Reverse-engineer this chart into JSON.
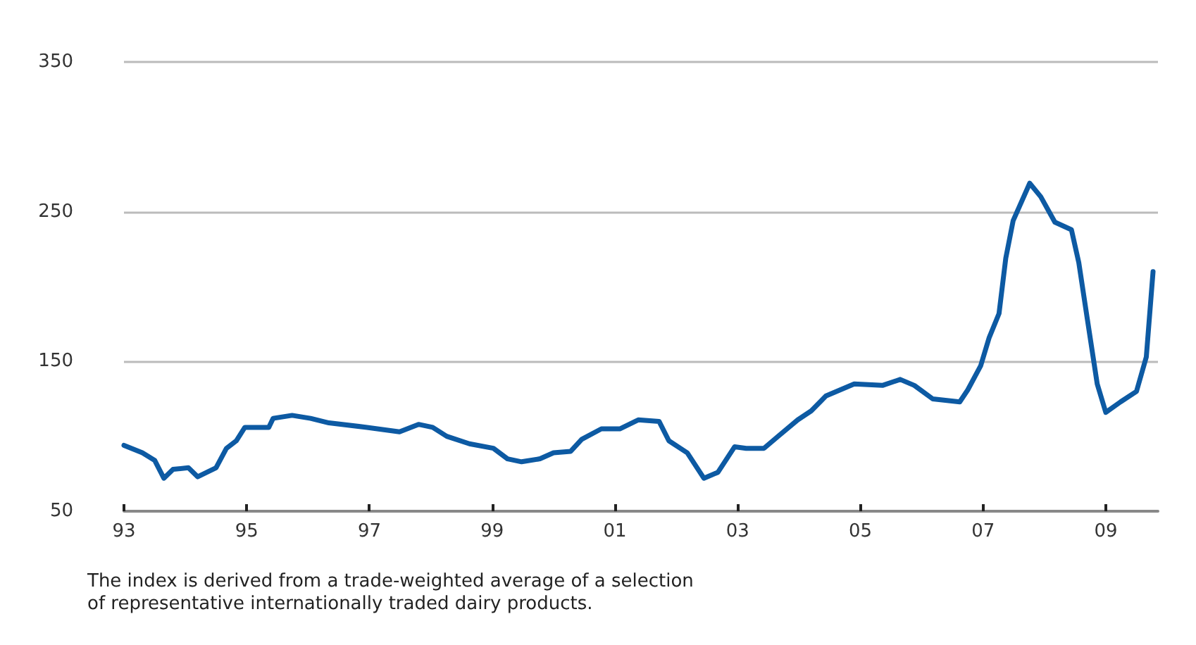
{
  "chart_data": {
    "type": "line",
    "x": [
      1993.0,
      1993.3,
      1993.5,
      1993.65,
      1993.8,
      1994.05,
      1994.2,
      1994.5,
      1994.67,
      1994.83,
      1994.97,
      1995.36,
      1995.43,
      1995.74,
      1996.04,
      1996.34,
      1996.96,
      1997.49,
      1997.8,
      1998.03,
      1998.26,
      1998.63,
      1999.02,
      1999.25,
      1999.48,
      1999.78,
      2000.0,
      2000.28,
      2000.46,
      2000.78,
      2001.08,
      2001.38,
      2001.72,
      2001.88,
      2002.18,
      2002.45,
      2002.68,
      2002.95,
      2003.14,
      2003.43,
      2003.66,
      2003.98,
      2004.2,
      2004.44,
      2004.9,
      2005.36,
      2005.65,
      2005.88,
      2006.18,
      2006.62,
      2006.75,
      2006.96,
      2007.1,
      2007.26,
      2007.37,
      2007.49,
      2007.76,
      2007.94,
      2008.17,
      2008.44,
      2008.56,
      2008.7,
      2008.86,
      2009.0,
      2009.24,
      2009.5,
      2009.66,
      2009.77
    ],
    "series": [
      {
        "color": "#0d5aa3",
        "values": [
          94,
          89,
          84,
          72,
          78,
          79,
          73,
          79,
          92,
          97,
          106,
          106,
          112,
          114,
          112,
          109,
          106,
          103,
          108,
          106,
          100,
          95,
          92,
          85,
          83,
          85,
          89,
          90,
          98,
          105,
          105,
          111,
          110,
          97,
          89,
          72,
          76,
          93,
          92,
          92,
          100,
          111,
          117,
          127,
          135,
          134,
          138,
          134,
          125,
          123,
          131,
          147,
          166,
          182,
          219,
          244,
          269,
          260,
          243,
          238,
          216,
          178,
          135,
          116,
          123,
          130,
          153,
          210
        ]
      }
    ],
    "xlim": [
      1993,
      2009.85
    ],
    "xticks": [
      {
        "value": 1993,
        "label": "93"
      },
      {
        "value": 1995,
        "label": "95"
      },
      {
        "value": 1997,
        "label": "97"
      },
      {
        "value": 1999,
        "label": "99"
      },
      {
        "value": 2001,
        "label": "01"
      },
      {
        "value": 2003,
        "label": "03"
      },
      {
        "value": 2005,
        "label": "05"
      },
      {
        "value": 2007,
        "label": "07"
      },
      {
        "value": 2009,
        "label": "09"
      }
    ],
    "ylim": [
      50,
      350
    ],
    "yticks": [
      50,
      150,
      250,
      350
    ],
    "grid": "y",
    "marker": "none",
    "line_style": "solid",
    "annotations": [
      "The index is derived from a trade-weighted average of a selection\nof representative internationally traded dairy products."
    ]
  }
}
